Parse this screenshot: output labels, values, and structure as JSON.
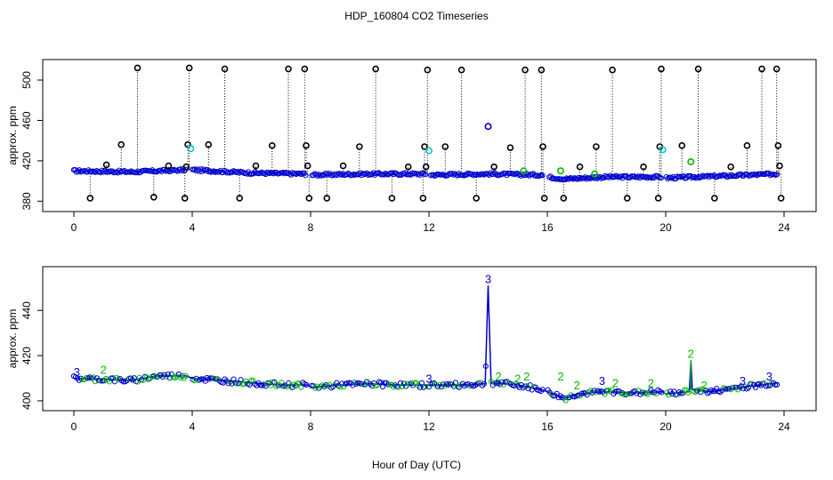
{
  "title": "HDP_160804  CO2 Timeseries",
  "xlabel": "Hour of Day (UTC)",
  "colors": {
    "outlier": "#000000",
    "mode3": "#0000cc",
    "mode2": "#00bb00",
    "flag": "#00cccc"
  },
  "chart_data": [
    {
      "type": "scatter",
      "panel": "top",
      "ylabel": "approx. ppm",
      "xlim": [
        0,
        24
      ],
      "ylim": [
        375,
        515
      ],
      "xticks": [
        0,
        4,
        8,
        12,
        16,
        20,
        24
      ],
      "yticks": [
        380,
        420,
        460,
        500
      ],
      "baseline": [
        [
          0,
          410
        ],
        [
          2,
          409
        ],
        [
          3.8,
          411
        ],
        [
          4,
          411
        ],
        [
          6,
          408
        ],
        [
          7.8,
          407
        ],
        [
          8,
          406
        ],
        [
          10,
          407
        ],
        [
          11.9,
          407
        ],
        [
          12,
          406
        ],
        [
          14,
          407
        ],
        [
          15.8,
          406
        ],
        [
          16,
          404
        ],
        [
          16.6,
          402
        ],
        [
          18,
          404
        ],
        [
          19.8,
          404
        ],
        [
          20,
          403
        ],
        [
          22,
          405
        ],
        [
          23.8,
          407
        ]
      ],
      "outliers": [
        [
          0.55,
          383
        ],
        [
          1.1,
          416
        ],
        [
          1.6,
          436
        ],
        [
          2.15,
          512
        ],
        [
          2.7,
          384
        ],
        [
          3.2,
          415
        ],
        [
          3.75,
          383
        ],
        [
          3.8,
          414
        ],
        [
          3.85,
          436
        ],
        [
          3.9,
          512
        ],
        [
          4.55,
          436
        ],
        [
          5.1,
          511
        ],
        [
          5.6,
          383
        ],
        [
          6.15,
          415
        ],
        [
          6.7,
          435
        ],
        [
          7.25,
          511
        ],
        [
          7.8,
          511
        ],
        [
          7.85,
          435
        ],
        [
          7.9,
          415
        ],
        [
          7.95,
          383
        ],
        [
          8.55,
          383
        ],
        [
          9.1,
          415
        ],
        [
          9.65,
          434
        ],
        [
          10.2,
          511
        ],
        [
          10.75,
          383
        ],
        [
          11.3,
          414
        ],
        [
          11.8,
          383
        ],
        [
          11.85,
          434
        ],
        [
          11.9,
          414
        ],
        [
          11.95,
          510
        ],
        [
          12.55,
          434
        ],
        [
          13.1,
          510
        ],
        [
          13.6,
          383
        ],
        [
          14.2,
          414
        ],
        [
          14.75,
          433
        ],
        [
          15.25,
          510
        ],
        [
          15.8,
          510
        ],
        [
          15.85,
          434
        ],
        [
          15.9,
          383
        ],
        [
          16.55,
          383
        ],
        [
          17.1,
          414
        ],
        [
          17.65,
          434
        ],
        [
          18.2,
          510
        ],
        [
          18.7,
          383
        ],
        [
          19.25,
          414
        ],
        [
          19.75,
          383
        ],
        [
          19.8,
          434
        ],
        [
          19.85,
          511
        ],
        [
          20.55,
          435
        ],
        [
          21.1,
          511
        ],
        [
          21.65,
          383
        ],
        [
          22.2,
          414
        ],
        [
          22.75,
          435
        ],
        [
          23.25,
          511
        ],
        [
          23.75,
          511
        ],
        [
          23.8,
          435
        ],
        [
          23.85,
          415
        ],
        [
          23.9,
          383
        ]
      ],
      "highlights": [
        {
          "x": 14.0,
          "y": 454,
          "kind": "mode3"
        },
        {
          "x": 3.95,
          "y": 432,
          "kind": "flag"
        },
        {
          "x": 12.0,
          "y": 430,
          "kind": "flag"
        },
        {
          "x": 19.9,
          "y": 431,
          "kind": "flag"
        },
        {
          "x": 20.85,
          "y": 419,
          "kind": "mode2"
        },
        {
          "x": 16.45,
          "y": 410,
          "kind": "mode2"
        },
        {
          "x": 17.6,
          "y": 407,
          "kind": "mode2"
        },
        {
          "x": 15.2,
          "y": 410,
          "kind": "mode2"
        }
      ]
    },
    {
      "type": "line",
      "panel": "bottom",
      "ylabel": "approx. ppm",
      "xlim": [
        0,
        24
      ],
      "ylim": [
        398,
        457
      ],
      "xticks": [
        0,
        4,
        8,
        12,
        16,
        20,
        24
      ],
      "yticks": [
        400,
        420,
        440
      ],
      "baseline": [
        [
          0,
          410
        ],
        [
          1,
          409.5
        ],
        [
          2,
          409
        ],
        [
          2.8,
          411
        ],
        [
          3.8,
          411
        ],
        [
          4,
          410
        ],
        [
          5,
          409
        ],
        [
          6,
          408
        ],
        [
          7,
          407
        ],
        [
          7.9,
          407
        ],
        [
          8,
          406
        ],
        [
          9,
          407
        ],
        [
          10,
          407.5
        ],
        [
          11,
          407
        ],
        [
          11.9,
          407
        ],
        [
          12,
          407
        ],
        [
          13,
          407
        ],
        [
          13.9,
          407.5
        ],
        [
          14.0,
          451
        ],
        [
          14.1,
          408
        ],
        [
          15,
          407
        ],
        [
          15.8,
          405
        ],
        [
          16,
          404
        ],
        [
          16.6,
          401
        ],
        [
          17,
          403
        ],
        [
          18,
          404
        ],
        [
          19,
          403.5
        ],
        [
          19.9,
          404
        ],
        [
          20,
          403
        ],
        [
          20.8,
          404
        ],
        [
          20.85,
          418
        ],
        [
          20.9,
          405
        ],
        [
          21.5,
          404
        ],
        [
          22.5,
          406
        ],
        [
          23.8,
          408
        ]
      ],
      "labels": [
        {
          "x": 14.0,
          "y": 452,
          "text": "3",
          "kind": "mode3"
        },
        {
          "x": 20.85,
          "y": 419,
          "text": "2",
          "kind": "mode2"
        },
        {
          "x": 0.1,
          "y": 411,
          "text": "3",
          "kind": "mode3"
        },
        {
          "x": 1.0,
          "y": 412,
          "text": "2",
          "kind": "mode2"
        },
        {
          "x": 12.0,
          "y": 408,
          "text": "3",
          "kind": "mode3"
        },
        {
          "x": 14.35,
          "y": 409,
          "text": "2",
          "kind": "mode2"
        },
        {
          "x": 15.0,
          "y": 408,
          "text": "2",
          "kind": "mode2"
        },
        {
          "x": 15.3,
          "y": 409,
          "text": "2",
          "kind": "mode2"
        },
        {
          "x": 16.45,
          "y": 409,
          "text": "2",
          "kind": "mode2"
        },
        {
          "x": 17.0,
          "y": 405,
          "text": "2",
          "kind": "mode2"
        },
        {
          "x": 17.85,
          "y": 407,
          "text": "3",
          "kind": "mode3"
        },
        {
          "x": 18.3,
          "y": 406,
          "text": "2",
          "kind": "mode2"
        },
        {
          "x": 19.5,
          "y": 406,
          "text": "2",
          "kind": "mode2"
        },
        {
          "x": 21.3,
          "y": 405,
          "text": "2",
          "kind": "mode2"
        },
        {
          "x": 22.6,
          "y": 407,
          "text": "3",
          "kind": "mode3"
        },
        {
          "x": 23.5,
          "y": 409,
          "text": "3",
          "kind": "mode3"
        }
      ]
    }
  ]
}
